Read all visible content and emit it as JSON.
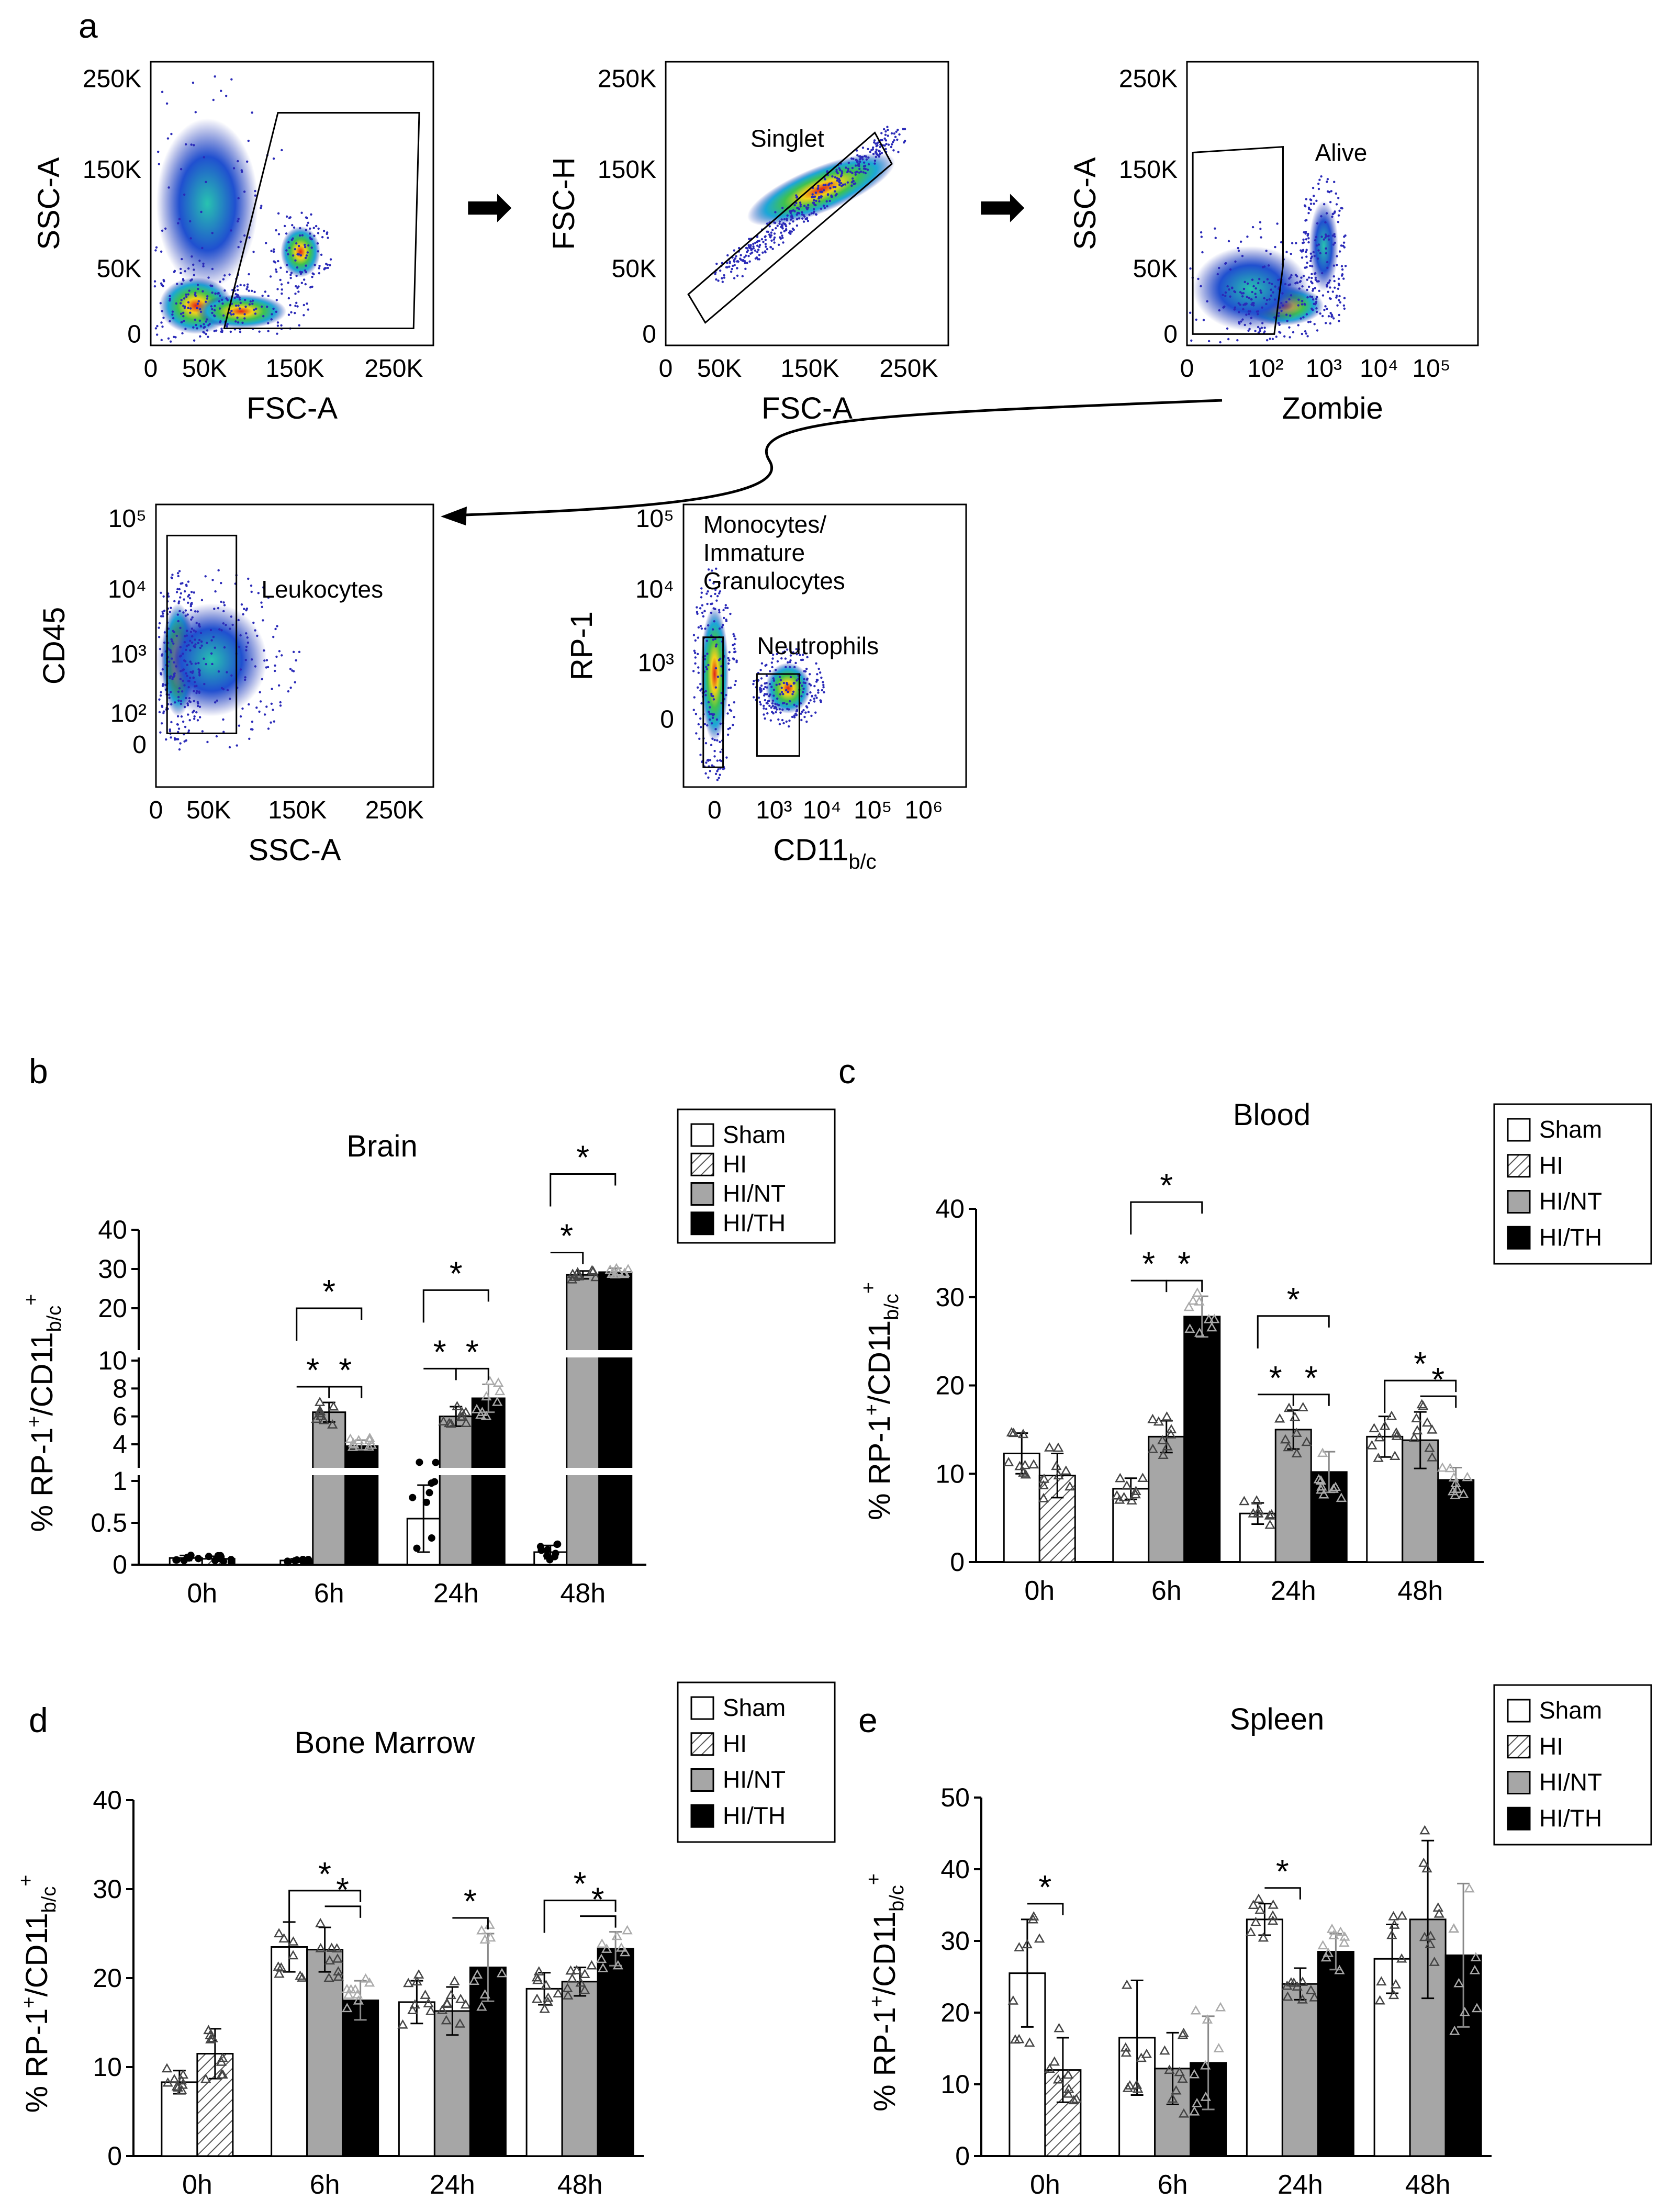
{
  "figure_letters": [
    "a",
    "b",
    "c",
    "d",
    "e"
  ],
  "panel_a": {
    "arrow_glyph": "➡",
    "plots": [
      {
        "id": "fsc-ssc",
        "xlabel": "FSC-A",
        "ylabel": "SSC-A",
        "xticks": [
          "0",
          "50K",
          "150K",
          "250K"
        ],
        "yticks": [
          "250K",
          "150K",
          "50K",
          "0"
        ],
        "gate_label": ""
      },
      {
        "id": "singlet",
        "xlabel": "FSC-A",
        "ylabel": "FSC-H",
        "xticks": [
          "0",
          "50K",
          "150K",
          "250K"
        ],
        "yticks": [
          "250K",
          "150K",
          "50K",
          "0"
        ],
        "gate_label": "Singlet"
      },
      {
        "id": "zombie",
        "xlabel": "Zombie",
        "ylabel": "SSC-A",
        "xticks": [
          "0",
          "10²",
          "10³",
          "10⁴",
          "10⁵"
        ],
        "yticks": [
          "250K",
          "150K",
          "50K",
          "0"
        ],
        "gate_label": "Alive"
      },
      {
        "id": "cd45",
        "xlabel": "SSC-A",
        "ylabel": "CD45",
        "xticks": [
          "0",
          "50K",
          "150K",
          "250K"
        ],
        "yticks": [
          "10⁵",
          "10⁴",
          "10³",
          "10²",
          "0"
        ],
        "gate_label": "Leukocytes"
      },
      {
        "id": "rp1",
        "xlabel": "CD11",
        "xlabel_sub": "b/c",
        "ylabel": "RP-1",
        "xticks": [
          "0",
          "10³",
          "10⁴",
          "10⁵",
          "10⁶"
        ],
        "yticks": [
          "10⁵",
          "10⁴",
          "10³",
          "0"
        ],
        "gate_label": "Monocytes/",
        "gate_label_2": "Immature",
        "gate_label_3": "Granulocytes",
        "gate_label_b": "Neutrophils"
      }
    ]
  },
  "legend": {
    "items": [
      "Sham",
      "HI",
      "HI/NT",
      "HI/TH"
    ]
  },
  "star": "*",
  "y_axis_label": {
    "main": "% RP-1",
    "sup1": "+",
    "mid": "/CD11",
    "sub": "b/c",
    "sup2": "+"
  },
  "colors": {
    "sham": "#ffffff",
    "hi": "#ffffff",
    "nt": "#a6a6a6",
    "th": "#000000",
    "hatch": "#555555",
    "outline": "#000000"
  },
  "chart_data": [
    {
      "type": "bar",
      "panel": "b",
      "title": "Brain",
      "axis_style": "broken",
      "categories": [
        "0h",
        "6h",
        "24h",
        "48h"
      ],
      "yticks": [
        "0",
        "0.5",
        "1",
        "4",
        "6",
        "8",
        "10",
        "20",
        "30",
        "40"
      ],
      "series": [
        {
          "name": "Sham",
          "values": [
            0.08,
            0.05,
            0.55,
            0.15
          ],
          "err": [
            0.03,
            0.02,
            0.4,
            0.08
          ]
        },
        {
          "name": "HI",
          "values": [
            0.07,
            null,
            null,
            null
          ],
          "err": [
            0.03,
            null,
            null,
            null
          ]
        },
        {
          "name": "HI/NT",
          "values": [
            null,
            6.3,
            6.0,
            28.5
          ],
          "err": [
            null,
            0.7,
            0.7,
            1.0
          ]
        },
        {
          "name": "HI/TH",
          "values": [
            null,
            3.7,
            7.3,
            29.2
          ],
          "err": [
            null,
            0.6,
            1.0,
            1.0
          ]
        }
      ],
      "significance": [
        {
          "group": "6h",
          "from": "Sham",
          "to": "HI/NT"
        },
        {
          "group": "6h",
          "from": "Sham",
          "to": "HI/TH"
        },
        {
          "group": "6h",
          "from": "HI/NT",
          "to": "HI/TH"
        },
        {
          "group": "24h",
          "from": "Sham",
          "to": "HI/NT"
        },
        {
          "group": "24h",
          "from": "Sham",
          "to": "HI/TH"
        },
        {
          "group": "24h",
          "from": "HI/NT",
          "to": "HI/TH"
        },
        {
          "group": "48h",
          "from": "Sham",
          "to": "HI/NT"
        },
        {
          "group": "48h",
          "from": "Sham",
          "to": "HI/TH"
        }
      ]
    },
    {
      "type": "bar",
      "panel": "c",
      "title": "Blood",
      "ylim": [
        0,
        40
      ],
      "categories": [
        "0h",
        "6h",
        "24h",
        "48h"
      ],
      "yticks": [
        "0",
        "10",
        "20",
        "30",
        "40"
      ],
      "series": [
        {
          "name": "Sham",
          "values": [
            12.3,
            8.3,
            5.5,
            14.2
          ],
          "err": [
            2.3,
            1.2,
            1.2,
            2.3
          ]
        },
        {
          "name": "HI",
          "values": [
            9.8,
            null,
            null,
            null
          ],
          "err": [
            2.5,
            null,
            null,
            null
          ]
        },
        {
          "name": "HI/NT",
          "values": [
            null,
            14.2,
            15.0,
            13.8
          ],
          "err": [
            null,
            1.8,
            2.2,
            3.2
          ]
        },
        {
          "name": "HI/TH",
          "values": [
            null,
            27.8,
            10.2,
            9.3
          ],
          "err": [
            null,
            2.3,
            2.3,
            1.4
          ]
        }
      ],
      "significance": [
        {
          "group": "6h",
          "from": "Sham",
          "to": "HI/NT"
        },
        {
          "group": "6h",
          "from": "Sham",
          "to": "HI/TH"
        },
        {
          "group": "6h",
          "from": "HI/NT",
          "to": "HI/TH"
        },
        {
          "group": "24h",
          "from": "Sham",
          "to": "HI/NT"
        },
        {
          "group": "24h",
          "from": "Sham",
          "to": "HI/TH"
        },
        {
          "group": "24h",
          "from": "HI/NT",
          "to": "HI/TH"
        },
        {
          "group": "48h",
          "from": "Sham",
          "to": "HI/TH"
        },
        {
          "group": "48h",
          "from": "HI/NT",
          "to": "HI/TH"
        }
      ]
    },
    {
      "type": "bar",
      "panel": "d",
      "title": "Bone Marrow",
      "ylim": [
        0,
        40
      ],
      "categories": [
        "0h",
        "6h",
        "24h",
        "48h"
      ],
      "yticks": [
        "0",
        "10",
        "20",
        "30",
        "40"
      ],
      "series": [
        {
          "name": "Sham",
          "values": [
            8.3,
            23.5,
            17.3,
            18.8
          ],
          "err": [
            1.3,
            2.8,
            2.4,
            1.8
          ]
        },
        {
          "name": "HI",
          "values": [
            11.5,
            null,
            null,
            null
          ],
          "err": [
            2.8,
            null,
            null,
            null
          ]
        },
        {
          "name": "HI/NT",
          "values": [
            null,
            23.2,
            16.3,
            19.6
          ],
          "err": [
            null,
            2.5,
            2.7,
            1.6
          ]
        },
        {
          "name": "HI/TH",
          "values": [
            null,
            17.5,
            21.2,
            23.3
          ],
          "err": [
            null,
            2.2,
            3.8,
            1.9
          ]
        }
      ],
      "significance": [
        {
          "group": "6h",
          "from": "Sham",
          "to": "HI/TH"
        },
        {
          "group": "6h",
          "from": "HI/NT",
          "to": "HI/TH"
        },
        {
          "group": "24h",
          "from": "HI/NT",
          "to": "HI/TH"
        },
        {
          "group": "48h",
          "from": "Sham",
          "to": "HI/TH"
        },
        {
          "group": "48h",
          "from": "HI/NT",
          "to": "HI/TH"
        }
      ]
    },
    {
      "type": "bar",
      "panel": "e",
      "title": "Spleen",
      "ylim": [
        0,
        50
      ],
      "categories": [
        "0h",
        "6h",
        "24h",
        "48h"
      ],
      "yticks": [
        "0",
        "10",
        "20",
        "30",
        "40",
        "50"
      ],
      "series": [
        {
          "name": "Sham",
          "values": [
            25.5,
            16.5,
            33.0,
            27.5
          ],
          "err": [
            7.5,
            8.0,
            2.2,
            4.8
          ]
        },
        {
          "name": "HI",
          "values": [
            12.0,
            null,
            null,
            null
          ],
          "err": [
            4.5,
            null,
            null,
            null
          ]
        },
        {
          "name": "HI/NT",
          "values": [
            null,
            12.2,
            24.0,
            33.0
          ],
          "err": [
            null,
            5.0,
            2.2,
            11.0
          ]
        },
        {
          "name": "HI/TH",
          "values": [
            null,
            13.0,
            28.5,
            28.0
          ],
          "err": [
            null,
            6.5,
            2.5,
            10.0
          ]
        }
      ],
      "significance": [
        {
          "group": "0h",
          "from": "Sham",
          "to": "HI"
        },
        {
          "group": "24h",
          "from": "Sham",
          "to": "HI/NT"
        }
      ]
    }
  ]
}
